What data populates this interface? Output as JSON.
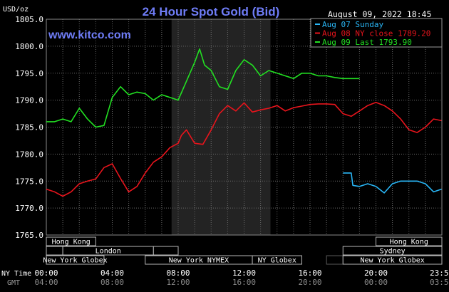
{
  "chart_data": {
    "type": "line",
    "title": "24 Hour Spot Gold (Bid)",
    "website": "www.kitco.com",
    "timestamp": "August 09, 2022 18:45",
    "ylabel": "USD/oz",
    "ylim": [
      1765,
      1805
    ],
    "yticks": [
      "1805.0",
      "1800.0",
      "1795.0",
      "1790.0",
      "1785.0",
      "1780.0",
      "1775.0",
      "1770.0",
      "1765.0"
    ],
    "x_primary_label": "NY Time",
    "x_secondary_label": "GMT",
    "xticks_ny": [
      "00:00",
      "04:00",
      "08:00",
      "12:00",
      "16:00",
      "20:00",
      "23:59"
    ],
    "xticks_gmt": [
      "04:00",
      "08:00",
      "12:00",
      "16:00",
      "20:00",
      "00:00",
      "03:59"
    ],
    "legend": [
      {
        "text": "Aug 07 Sunday",
        "color": "#29b6f6"
      },
      {
        "text": "Aug 08 NY close 1789.20",
        "color": "#e8141c"
      },
      {
        "text": "Aug 09 Last 1793.90",
        "color": "#22e022"
      }
    ],
    "series": [
      {
        "color": "#e8141c",
        "x": [
          0,
          0.5,
          1,
          1.5,
          2,
          2.5,
          3,
          3.5,
          4,
          4.5,
          5,
          5.5,
          6,
          6.5,
          7,
          7.5,
          8,
          8.2,
          8.5,
          9,
          9.5,
          10,
          10.5,
          11,
          11.5,
          12,
          12.5,
          13,
          13.5,
          14,
          14.5,
          15,
          15.5,
          16,
          16.5,
          17,
          17.5,
          18,
          18.5,
          19,
          19.5,
          20,
          20.5,
          21,
          21.5,
          22,
          22.5,
          23,
          23.5,
          23.98
        ],
        "y": [
          1773.5,
          1773.0,
          1772.2,
          1773.0,
          1774.5,
          1775.0,
          1775.4,
          1777.5,
          1778.2,
          1775.5,
          1773.0,
          1774.0,
          1776.5,
          1778.5,
          1779.5,
          1781.2,
          1782.0,
          1783.5,
          1784.5,
          1782.0,
          1781.8,
          1784.5,
          1787.5,
          1789.0,
          1788.0,
          1789.5,
          1787.8,
          1788.2,
          1788.5,
          1789.0,
          1788.0,
          1788.6,
          1788.9,
          1789.2,
          1789.3,
          1789.3,
          1789.2,
          1787.5,
          1787.0,
          1788.0,
          1789.0,
          1789.6,
          1789.0,
          1788.0,
          1786.5,
          1784.5,
          1784.0,
          1785.0,
          1786.5,
          1786.2
        ]
      },
      {
        "color": "#22e022",
        "x": [
          0,
          0.5,
          1,
          1.5,
          2,
          2.5,
          3,
          3.5,
          4,
          4.5,
          5,
          5.5,
          6,
          6.5,
          7,
          7.5,
          8,
          8.5,
          9,
          9.3,
          9.6,
          10,
          10.5,
          11,
          11.5,
          12,
          12.5,
          13,
          13.5,
          14,
          14.5,
          15,
          15.5,
          16,
          16.5,
          17,
          17.5,
          18,
          18.5,
          19
        ],
        "y": [
          1786.0,
          1786.0,
          1786.5,
          1786.0,
          1788.5,
          1786.5,
          1785.0,
          1785.3,
          1790.5,
          1792.5,
          1791.0,
          1791.5,
          1791.2,
          1790.0,
          1791.0,
          1790.5,
          1790.0,
          1793.5,
          1797.0,
          1799.5,
          1796.5,
          1795.5,
          1792.5,
          1792.0,
          1795.5,
          1797.5,
          1796.5,
          1794.5,
          1795.5,
          1795.0,
          1794.5,
          1794.0,
          1795.0,
          1795.0,
          1794.5,
          1794.5,
          1794.2,
          1794.0,
          1794.0,
          1794.0
        ]
      },
      {
        "color": "#29b6f6",
        "x": [
          18,
          18.5,
          18.6,
          19,
          19.5,
          20,
          20.5,
          21,
          21.5,
          22,
          22.5,
          23,
          23.5,
          23.98
        ],
        "y": [
          1776.5,
          1776.5,
          1774.2,
          1774.0,
          1774.5,
          1774.0,
          1772.8,
          1774.5,
          1775.0,
          1775.0,
          1775.0,
          1774.5,
          1773.0,
          1773.5
        ]
      }
    ],
    "shaded_range": [
      7.6,
      13.6
    ],
    "sessions_row1": [
      {
        "label": "Hong Kong",
        "start": 0,
        "end": 3,
        "faded": false
      },
      {
        "label": "Hong Kong",
        "start": 20,
        "end": 24,
        "faded": false
      }
    ],
    "sessions_row2": [
      {
        "label": "",
        "start": 0,
        "end": 1,
        "faded": false
      },
      {
        "label": "London",
        "start": 1,
        "end": 6.5,
        "faded": false
      },
      {
        "label": "",
        "start": 6.5,
        "end": 8,
        "faded": false
      },
      {
        "label": "Sydney",
        "start": 18,
        "end": 24,
        "faded": false
      }
    ],
    "sessions_row3": [
      {
        "label": "New York Globex",
        "start": 0,
        "end": 3.5,
        "faded": false
      },
      {
        "label": "New York NYMEX",
        "start": 6,
        "end": 12.5,
        "faded": false
      },
      {
        "label": "NY Globex",
        "start": 12.5,
        "end": 15.5,
        "faded": false
      },
      {
        "label": "",
        "start": 17,
        "end": 18,
        "faded": true
      },
      {
        "label": "New York Globex",
        "start": 18,
        "end": 24,
        "faded": false
      }
    ]
  }
}
